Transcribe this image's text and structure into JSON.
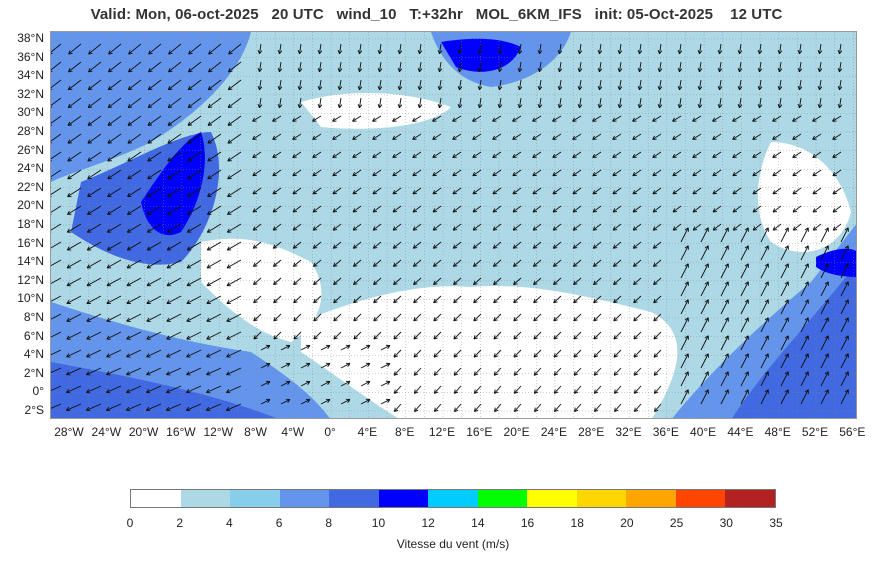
{
  "title": "Valid: Mon, 06-oct-2025   20 UTC   wind_10   T:+32hr   MOL_6KM_IFS   init: 05-Oct-2025    12 UTC",
  "lat_labels": [
    "38°N",
    "36°N",
    "34°N",
    "32°N",
    "30°N",
    "28°N",
    "26°N",
    "24°N",
    "22°N",
    "20°N",
    "18°N",
    "16°N",
    "14°N",
    "12°N",
    "10°N",
    "8°N",
    "6°N",
    "4°N",
    "2°N",
    "0°",
    "2°S"
  ],
  "lon_labels": [
    "28°W",
    "24°W",
    "20°W",
    "16°W",
    "12°W",
    "8°W",
    "4°W",
    "0°",
    "4°E",
    "8°E",
    "12°E",
    "16°E",
    "20°E",
    "24°E",
    "28°E",
    "32°E",
    "36°E",
    "40°E",
    "44°E",
    "48°E",
    "52°E",
    "56°E"
  ],
  "colorbar": {
    "label": "Vitesse du vent (m/s)",
    "ticks": [
      "0",
      "2",
      "4",
      "6",
      "8",
      "10",
      "12",
      "14",
      "16",
      "18",
      "20",
      "25",
      "30",
      "35"
    ],
    "colors": [
      "#ffffff",
      "#add8e6",
      "#87ceeb",
      "#6495ed",
      "#4169e1",
      "#0000ff",
      "#00ccff",
      "#00ff00",
      "#ffff00",
      "#ffd700",
      "#ffa500",
      "#ff4500",
      "#b22222"
    ]
  },
  "map_colors": {
    "land_bg": "#ffffff",
    "ocean_low": "#add8e6",
    "ocean_mid": "#87ceeb",
    "ocean_high": "#6495ed",
    "arrow": "#000000",
    "border": "#333333"
  }
}
